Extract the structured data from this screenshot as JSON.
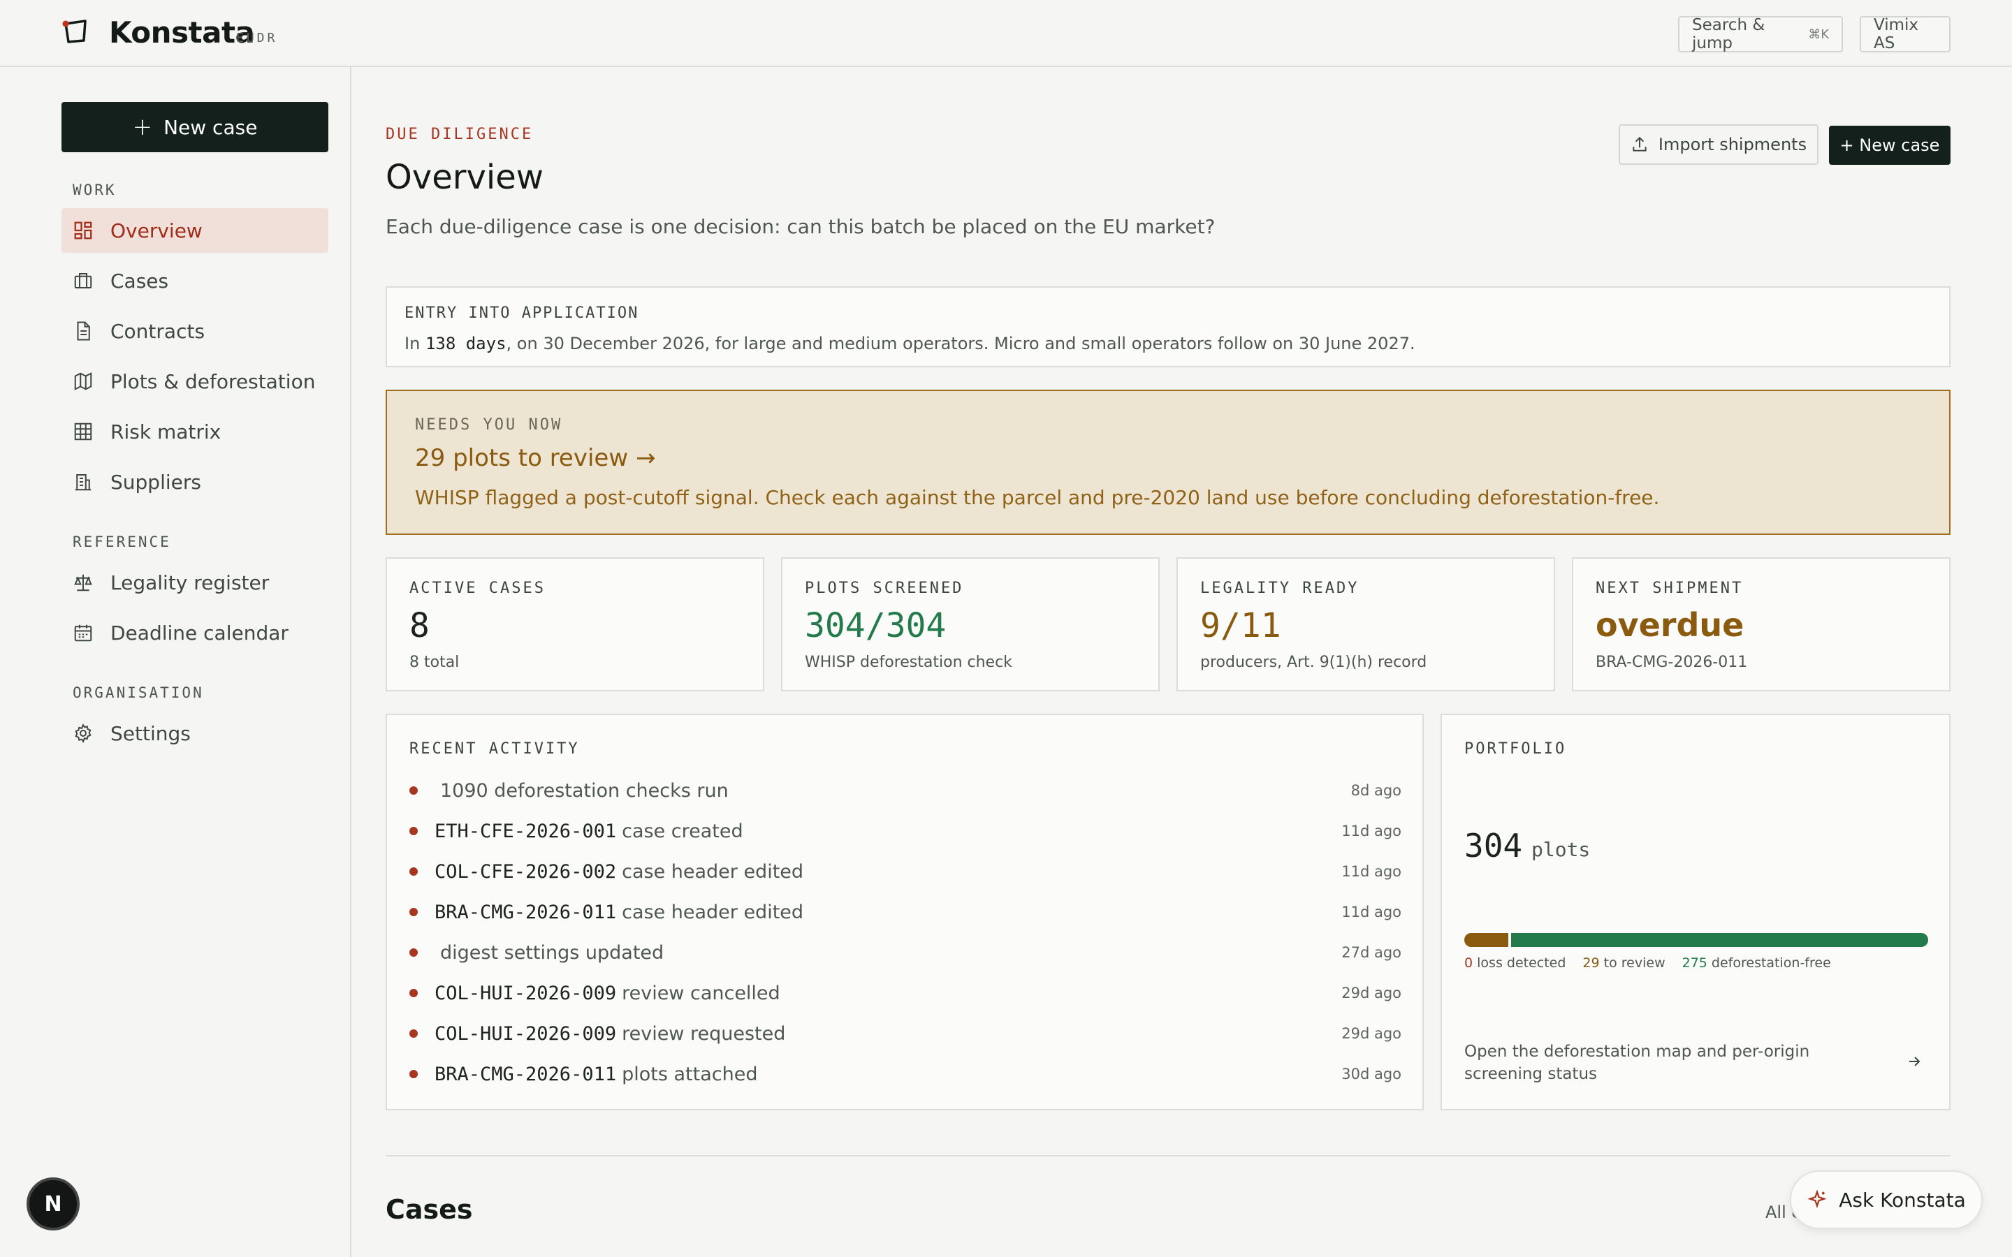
{
  "brand": {
    "name": "Konstata",
    "sub": "EUDR"
  },
  "topbar": {
    "search_label": "Search & jump",
    "search_kbd": "⌘K",
    "org_label": "Vimix AS"
  },
  "sidebar": {
    "new_case_label": "New case",
    "sections": {
      "work": "WORK",
      "reference": "REFERENCE",
      "organisation": "ORGANISATION"
    },
    "items": [
      {
        "label": "Overview",
        "icon": "dashboard-icon",
        "active": true
      },
      {
        "label": "Cases",
        "icon": "briefcase-icon"
      },
      {
        "label": "Contracts",
        "icon": "document-icon"
      },
      {
        "label": "Plots & deforestation",
        "icon": "map-icon"
      },
      {
        "label": "Risk matrix",
        "icon": "grid-icon"
      },
      {
        "label": "Suppliers",
        "icon": "building-icon"
      },
      {
        "label": "Legality register",
        "icon": "scales-icon"
      },
      {
        "label": "Deadline calendar",
        "icon": "calendar-icon"
      },
      {
        "label": "Settings",
        "icon": "gear-icon"
      }
    ]
  },
  "user": {
    "avatar_initial": "N"
  },
  "header": {
    "eyebrow": "DUE DILIGENCE",
    "title": "Overview",
    "subtitle": "Each due-diligence case is one decision: can this batch be placed on the EU market?",
    "import_label": "Import shipments",
    "new_case_label": "+ New case"
  },
  "entry": {
    "label": "ENTRY INTO APPLICATION",
    "prefix": "In",
    "days": "138 days",
    "rest": ", on 30 December 2026, for large and medium operators. Micro and small operators follow on 30 June 2027."
  },
  "alert": {
    "label": "NEEDS YOU NOW",
    "heading": "29 plots to review →",
    "text": "WHISP flagged a post-cutoff signal. Check each against the parcel and pre-2020 land use before concluding deforestation-free."
  },
  "stats": [
    {
      "label": "ACTIVE CASES",
      "value": "8",
      "sub": "8 total",
      "color": "#1c2320"
    },
    {
      "label": "PLOTS SCREENED",
      "value": "304/304",
      "sub": "WHISP deforestation check",
      "color": "#237a4b"
    },
    {
      "label": "LEGALITY READY",
      "value": "9/11",
      "sub": "producers, Art. 9(1)(h) record",
      "color": "#8a5a0f"
    },
    {
      "label": "NEXT SHIPMENT",
      "value": "overdue",
      "sub": "BRA-CMG-2026-011",
      "color": "#8a5a0f"
    }
  ],
  "activity": {
    "label": "RECENT ACTIVITY",
    "items": [
      {
        "code": "",
        "text": "1090 deforestation checks run",
        "ago": "8d ago"
      },
      {
        "code": "ETH-CFE-2026-001",
        "text": "case created",
        "ago": "11d ago"
      },
      {
        "code": "COL-CFE-2026-002",
        "text": "case header edited",
        "ago": "11d ago"
      },
      {
        "code": "BRA-CMG-2026-011",
        "text": "case header edited",
        "ago": "11d ago"
      },
      {
        "code": "",
        "text": "digest settings updated",
        "ago": "27d ago"
      },
      {
        "code": "COL-HUI-2026-009",
        "text": "review cancelled",
        "ago": "29d ago"
      },
      {
        "code": "COL-HUI-2026-009",
        "text": "review requested",
        "ago": "29d ago"
      },
      {
        "code": "BRA-CMG-2026-011",
        "text": "plots attached",
        "ago": "30d ago"
      }
    ]
  },
  "portfolio": {
    "label": "PORTFOLIO",
    "total": "304",
    "unit": "plots",
    "loss": 0,
    "loss_label": "loss detected",
    "review": 29,
    "review_label": "to review",
    "free": 275,
    "free_label": "deforestation-free",
    "link_text": "Open the deforestation map and per-origin screening status",
    "colors": {
      "loss": "#a6361f",
      "review": "#8a5a0f",
      "free": "#237a4b"
    }
  },
  "cases": {
    "title": "Cases",
    "all_label": "All c"
  },
  "assistant": {
    "label": "Ask Konstata"
  }
}
